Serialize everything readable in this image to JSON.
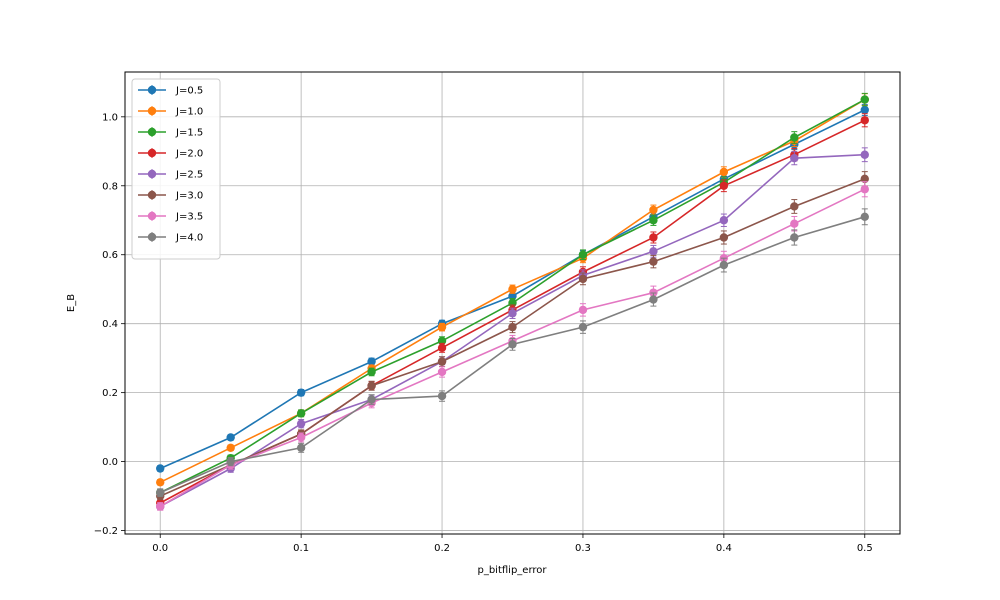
{
  "chart_data": {
    "type": "line",
    "title": "",
    "xlabel": "p_bitflip_error",
    "ylabel": "E_B",
    "xlim": [
      -0.025,
      0.525
    ],
    "ylim": [
      -0.21,
      1.13
    ],
    "grid": true,
    "legend_position": "top-left",
    "error_bars": true,
    "x": [
      0.0,
      0.05,
      0.1,
      0.15,
      0.2,
      0.25,
      0.3,
      0.35,
      0.4,
      0.45,
      0.5
    ],
    "x_ticks": [
      {
        "value": 0.0,
        "label": "0.0"
      },
      {
        "value": 0.1,
        "label": "0.1"
      },
      {
        "value": 0.2,
        "label": "0.2"
      },
      {
        "value": 0.3,
        "label": "0.3"
      },
      {
        "value": 0.4,
        "label": "0.4"
      },
      {
        "value": 0.5,
        "label": "0.5"
      }
    ],
    "y_ticks": [
      {
        "value": -0.2,
        "label": "−0.2"
      },
      {
        "value": 0.0,
        "label": "0.0"
      },
      {
        "value": 0.2,
        "label": "0.2"
      },
      {
        "value": 0.4,
        "label": "0.4"
      },
      {
        "value": 0.6,
        "label": "0.6"
      },
      {
        "value": 0.8,
        "label": "0.8"
      },
      {
        "value": 1.0,
        "label": "1.0"
      }
    ],
    "series": [
      {
        "name": "J=0.5",
        "color": "#1f77b4",
        "values": [
          -0.02,
          0.07,
          0.2,
          0.29,
          0.4,
          0.48,
          0.6,
          0.71,
          0.82,
          0.92,
          1.02
        ],
        "errors": [
          0.008,
          0.008,
          0.009,
          0.01,
          0.01,
          0.011,
          0.012,
          0.013,
          0.014,
          0.015,
          0.016
        ]
      },
      {
        "name": "J=1.0",
        "color": "#ff7f0e",
        "values": [
          -0.06,
          0.04,
          0.14,
          0.27,
          0.39,
          0.5,
          0.59,
          0.73,
          0.84,
          0.93,
          1.05
        ],
        "errors": [
          0.008,
          0.008,
          0.009,
          0.01,
          0.011,
          0.012,
          0.013,
          0.014,
          0.015,
          0.016,
          0.017
        ]
      },
      {
        "name": "J=1.5",
        "color": "#2ca02c",
        "values": [
          -0.09,
          0.01,
          0.14,
          0.26,
          0.35,
          0.46,
          0.6,
          0.7,
          0.81,
          0.94,
          1.05
        ],
        "errors": [
          0.009,
          0.009,
          0.01,
          0.011,
          0.012,
          0.013,
          0.014,
          0.015,
          0.016,
          0.017,
          0.018
        ]
      },
      {
        "name": "J=2.0",
        "color": "#d62728",
        "values": [
          -0.12,
          -0.01,
          0.08,
          0.22,
          0.33,
          0.44,
          0.55,
          0.65,
          0.8,
          0.89,
          0.99
        ],
        "errors": [
          0.009,
          0.01,
          0.011,
          0.012,
          0.013,
          0.014,
          0.015,
          0.016,
          0.017,
          0.018,
          0.019
        ]
      },
      {
        "name": "J=2.5",
        "color": "#9467bd",
        "values": [
          -0.13,
          -0.02,
          0.11,
          0.18,
          0.29,
          0.43,
          0.54,
          0.61,
          0.7,
          0.88,
          0.89
        ],
        "errors": [
          0.01,
          0.011,
          0.012,
          0.013,
          0.014,
          0.015,
          0.016,
          0.017,
          0.018,
          0.019,
          0.02
        ]
      },
      {
        "name": "J=3.0",
        "color": "#8c564b",
        "values": [
          -0.1,
          -0.01,
          0.08,
          0.22,
          0.29,
          0.39,
          0.53,
          0.58,
          0.65,
          0.74,
          0.82
        ],
        "errors": [
          0.01,
          0.011,
          0.012,
          0.013,
          0.014,
          0.016,
          0.017,
          0.018,
          0.019,
          0.02,
          0.021
        ]
      },
      {
        "name": "J=3.5",
        "color": "#e377c2",
        "values": [
          -0.13,
          -0.01,
          0.07,
          0.17,
          0.26,
          0.35,
          0.44,
          0.49,
          0.59,
          0.69,
          0.79
        ],
        "errors": [
          0.011,
          0.012,
          0.013,
          0.014,
          0.015,
          0.016,
          0.018,
          0.019,
          0.02,
          0.021,
          0.022
        ]
      },
      {
        "name": "J=4.0",
        "color": "#7f7f7f",
        "values": [
          -0.09,
          0.0,
          0.04,
          0.18,
          0.19,
          0.34,
          0.39,
          0.47,
          0.57,
          0.65,
          0.71
        ],
        "errors": [
          0.011,
          0.012,
          0.013,
          0.014,
          0.015,
          0.017,
          0.018,
          0.019,
          0.02,
          0.022,
          0.023
        ]
      }
    ]
  }
}
